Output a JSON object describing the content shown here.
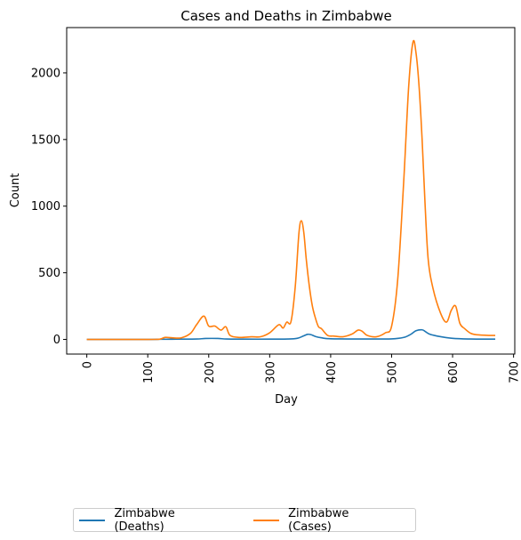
{
  "chart_data": {
    "type": "line",
    "title": "Cases and Deaths in Zimbabwe",
    "xlabel": "Day",
    "ylabel": "Count",
    "xlim": [
      -33,
      702
    ],
    "ylim": [
      -110,
      2340
    ],
    "xticks": [
      0,
      100,
      200,
      300,
      400,
      500,
      600,
      700
    ],
    "yticks": [
      0,
      500,
      1000,
      1500,
      2000
    ],
    "legend_position": "below-left",
    "series": [
      {
        "name": "Zimbabwe (Deaths)",
        "color": "#1f77b4",
        "x": [
          0,
          100,
          120,
          150,
          180,
          195,
          215,
          230,
          260,
          300,
          330,
          345,
          355,
          362,
          368,
          375,
          385,
          400,
          450,
          500,
          520,
          532,
          540,
          550,
          555,
          562,
          575,
          600,
          630,
          670
        ],
        "y": [
          0,
          0,
          1,
          2,
          3,
          7,
          7,
          3,
          2,
          2,
          3,
          8,
          25,
          38,
          35,
          22,
          12,
          5,
          3,
          4,
          15,
          40,
          65,
          72,
          60,
          40,
          25,
          8,
          3,
          2
        ]
      },
      {
        "name": "Zimbabwe (Cases)",
        "color": "#ff7f0e",
        "x": [
          0,
          100,
          120,
          128,
          140,
          155,
          170,
          180,
          192,
          200,
          210,
          220,
          228,
          235,
          250,
          270,
          285,
          300,
          315,
          322,
          328,
          335,
          342,
          348,
          352,
          356,
          360,
          365,
          370,
          375,
          380,
          385,
          395,
          405,
          420,
          435,
          445,
          452,
          460,
          475,
          490,
          500,
          510,
          520,
          528,
          535,
          540,
          545,
          550,
          555,
          560,
          568,
          580,
          590,
          598,
          605,
          612,
          620,
          630,
          640,
          660,
          670
        ],
        "y": [
          0,
          0,
          2,
          15,
          12,
          12,
          45,
          110,
          175,
          100,
          100,
          70,
          95,
          30,
          15,
          20,
          20,
          50,
          110,
          85,
          130,
          135,
          400,
          800,
          890,
          800,
          600,
          400,
          250,
          160,
          95,
          80,
          30,
          25,
          20,
          40,
          70,
          60,
          30,
          20,
          50,
          100,
          450,
          1200,
          1900,
          2230,
          2150,
          1900,
          1500,
          1000,
          600,
          380,
          200,
          130,
          220,
          250,
          120,
          80,
          45,
          35,
          30,
          30
        ]
      }
    ]
  }
}
